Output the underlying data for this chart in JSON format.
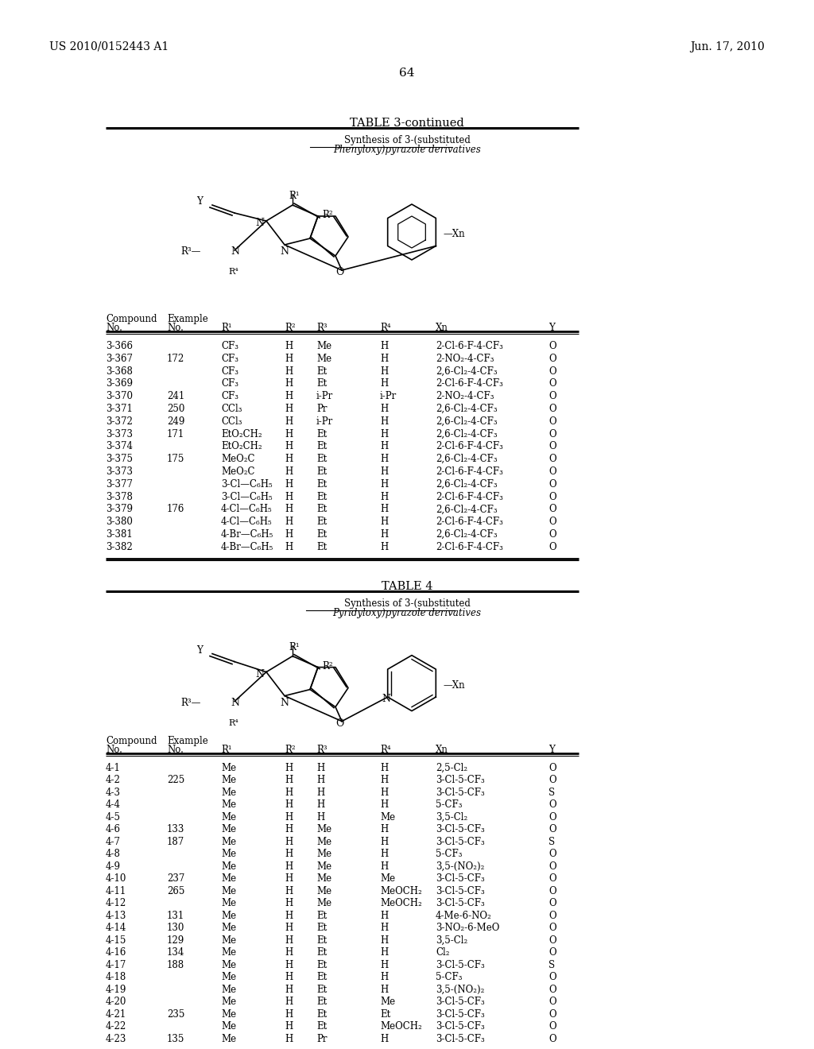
{
  "header_left": "US 2010/0152443 A1",
  "header_right": "Jun. 17, 2010",
  "page_number": "64",
  "table3_title": "TABLE 3-continued",
  "table3_subtitle1": "Synthesis of 3-(substituted",
  "table3_subtitle2": "Phenyloxy)pyrazole derivatives",
  "table4_title": "TABLE 4",
  "table4_subtitle1": "Synthesis of 3-(substituted",
  "table4_subtitle2": "Pyridyloxy)pyrazole derivatives",
  "table3_rows": [
    [
      "3-366",
      "",
      "CF₃",
      "H",
      "Me",
      "H",
      "2-Cl-6-F-4-CF₃",
      "O"
    ],
    [
      "3-367",
      "172",
      "CF₃",
      "H",
      "Me",
      "H",
      "2-NO₂-4-CF₃",
      "O"
    ],
    [
      "3-368",
      "",
      "CF₃",
      "H",
      "Et",
      "H",
      "2,6-Cl₂-4-CF₃",
      "O"
    ],
    [
      "3-369",
      "",
      "CF₃",
      "H",
      "Et",
      "H",
      "2-Cl-6-F-4-CF₃",
      "O"
    ],
    [
      "3-370",
      "241",
      "CF₃",
      "H",
      "i-Pr",
      "i-Pr",
      "2-NO₂-4-CF₃",
      "O"
    ],
    [
      "3-371",
      "250",
      "CCl₃",
      "H",
      "Pr",
      "H",
      "2,6-Cl₂-4-CF₃",
      "O"
    ],
    [
      "3-372",
      "249",
      "CCl₃",
      "H",
      "i-Pr",
      "H",
      "2,6-Cl₂-4-CF₃",
      "O"
    ],
    [
      "3-373",
      "171",
      "EtO₂CH₂",
      "H",
      "Et",
      "H",
      "2,6-Cl₂-4-CF₃",
      "O"
    ],
    [
      "3-374",
      "",
      "EtO₂CH₂",
      "H",
      "Et",
      "H",
      "2-Cl-6-F-4-CF₃",
      "O"
    ],
    [
      "3-375",
      "175",
      "MeO₂C",
      "H",
      "Et",
      "H",
      "2,6-Cl₂-4-CF₃",
      "O"
    ],
    [
      "3-373",
      "",
      "MeO₂C",
      "H",
      "Et",
      "H",
      "2-Cl-6-F-4-CF₃",
      "O"
    ],
    [
      "3-377",
      "",
      "3-Cl—C₆H₅",
      "H",
      "Et",
      "H",
      "2,6-Cl₂-4-CF₃",
      "O"
    ],
    [
      "3-378",
      "",
      "3-Cl—C₆H₅",
      "H",
      "Et",
      "H",
      "2-Cl-6-F-4-CF₃",
      "O"
    ],
    [
      "3-379",
      "176",
      "4-Cl—C₆H₅",
      "H",
      "Et",
      "H",
      "2,6-Cl₂-4-CF₃",
      "O"
    ],
    [
      "3-380",
      "",
      "4-Cl—C₆H₅",
      "H",
      "Et",
      "H",
      "2-Cl-6-F-4-CF₃",
      "O"
    ],
    [
      "3-381",
      "",
      "4-Br—C₆H₅",
      "H",
      "Et",
      "H",
      "2,6-Cl₂-4-CF₃",
      "O"
    ],
    [
      "3-382",
      "",
      "4-Br—C₆H₅",
      "H",
      "Et",
      "H",
      "2-Cl-6-F-4-CF₃",
      "O"
    ]
  ],
  "table4_rows": [
    [
      "4-1",
      "",
      "Me",
      "H",
      "H",
      "H",
      "2,5-Cl₂",
      "O"
    ],
    [
      "4-2",
      "225",
      "Me",
      "H",
      "H",
      "H",
      "3-Cl-5-CF₃",
      "O"
    ],
    [
      "4-3",
      "",
      "Me",
      "H",
      "H",
      "H",
      "3-Cl-5-CF₃",
      "S"
    ],
    [
      "4-4",
      "",
      "Me",
      "H",
      "H",
      "H",
      "5-CF₃",
      "O"
    ],
    [
      "4-5",
      "",
      "Me",
      "H",
      "H",
      "Me",
      "3,5-Cl₂",
      "O"
    ],
    [
      "4-6",
      "133",
      "Me",
      "H",
      "Me",
      "H",
      "3-Cl-5-CF₃",
      "O"
    ],
    [
      "4-7",
      "187",
      "Me",
      "H",
      "Me",
      "H",
      "3-Cl-5-CF₃",
      "S"
    ],
    [
      "4-8",
      "",
      "Me",
      "H",
      "Me",
      "H",
      "5-CF₃",
      "O"
    ],
    [
      "4-9",
      "",
      "Me",
      "H",
      "Me",
      "H",
      "3,5-(NO₂)₂",
      "O"
    ],
    [
      "4-10",
      "237",
      "Me",
      "H",
      "Me",
      "Me",
      "3-Cl-5-CF₃",
      "O"
    ],
    [
      "4-11",
      "265",
      "Me",
      "H",
      "Me",
      "MeOCH₂",
      "3-Cl-5-CF₃",
      "O"
    ],
    [
      "4-12",
      "",
      "Me",
      "H",
      "Me",
      "MeOCH₂",
      "3-Cl-5-CF₃",
      "O"
    ],
    [
      "4-13",
      "131",
      "Me",
      "H",
      "Et",
      "H",
      "4-Me-6-NO₂",
      "O"
    ],
    [
      "4-14",
      "130",
      "Me",
      "H",
      "Et",
      "H",
      "3-NO₂-6-MeO",
      "O"
    ],
    [
      "4-15",
      "129",
      "Me",
      "H",
      "Et",
      "H",
      "3,5-Cl₂",
      "O"
    ],
    [
      "4-16",
      "134",
      "Me",
      "H",
      "Et",
      "H",
      "Cl₂",
      "O"
    ],
    [
      "4-17",
      "188",
      "Me",
      "H",
      "Et",
      "H",
      "3-Cl-5-CF₃",
      "S"
    ],
    [
      "4-18",
      "",
      "Me",
      "H",
      "Et",
      "H",
      "5-CF₃",
      "O"
    ],
    [
      "4-19",
      "",
      "Me",
      "H",
      "Et",
      "H",
      "3,5-(NO₂)₂",
      "O"
    ],
    [
      "4-20",
      "",
      "Me",
      "H",
      "Et",
      "Me",
      "3-Cl-5-CF₃",
      "O"
    ],
    [
      "4-21",
      "235",
      "Me",
      "H",
      "Et",
      "Et",
      "3-Cl-5-CF₃",
      "O"
    ],
    [
      "4-22",
      "",
      "Me",
      "H",
      "Et",
      "MeOCH₂",
      "3-Cl-5-CF₃",
      "O"
    ],
    [
      "4-23",
      "135",
      "Me",
      "H",
      "Pr",
      "H",
      "3-Cl-5-CF₃",
      "O"
    ]
  ]
}
